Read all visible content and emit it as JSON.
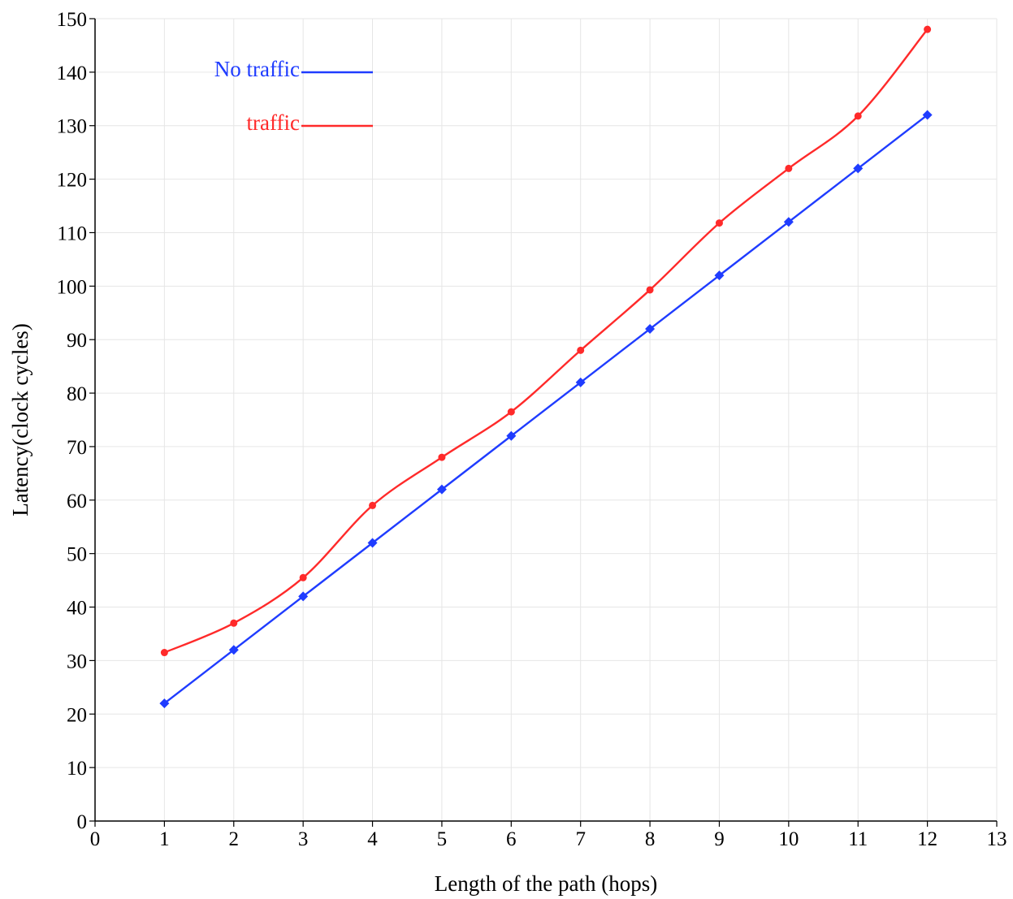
{
  "chart_data": {
    "type": "line",
    "xlabel": "Length of the path (hops)",
    "ylabel": "Latency(clock cycles)",
    "xlim": [
      0,
      13
    ],
    "ylim": [
      0,
      150
    ],
    "x_ticks": [
      0,
      1,
      2,
      3,
      4,
      5,
      6,
      7,
      8,
      9,
      10,
      11,
      12,
      13
    ],
    "y_ticks": [
      0,
      10,
      20,
      30,
      40,
      50,
      60,
      70,
      80,
      90,
      100,
      110,
      120,
      130,
      140,
      150
    ],
    "grid": true,
    "legend_position": "top-left",
    "x": [
      1,
      2,
      3,
      4,
      5,
      6,
      7,
      8,
      9,
      10,
      11,
      12
    ],
    "series": [
      {
        "name": "No traffic",
        "color": "#1f3cff",
        "marker": "diamond",
        "curve": "straight",
        "values": [
          22,
          32,
          42,
          52,
          62,
          72,
          82,
          92,
          102,
          112,
          122,
          132
        ]
      },
      {
        "name": "traffic",
        "color": "#ff2a2a",
        "marker": "circle",
        "curve": "smooth",
        "values": [
          31.5,
          37,
          45.5,
          59,
          68,
          76.5,
          88,
          99.3,
          111.8,
          122,
          131.8,
          148
        ]
      }
    ]
  }
}
